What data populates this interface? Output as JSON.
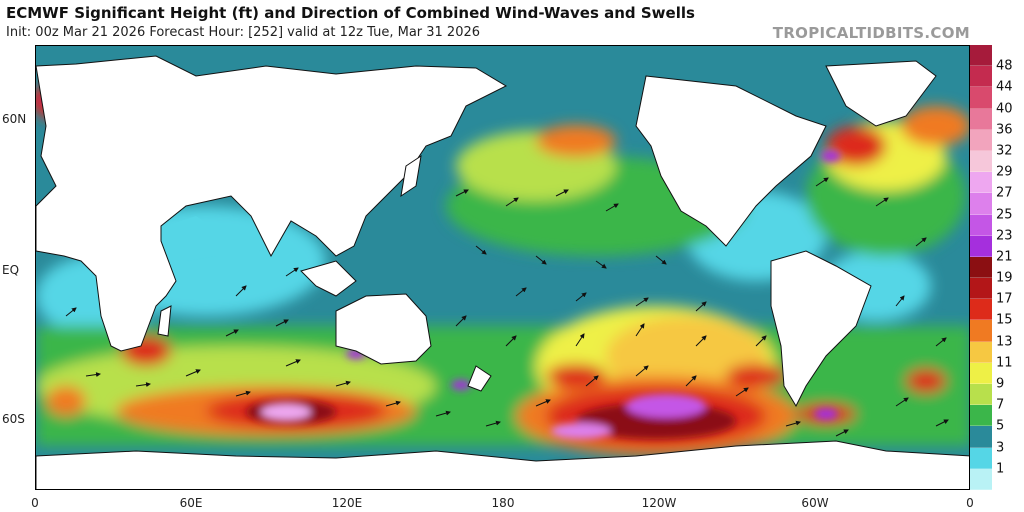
{
  "header": {
    "title": "ECMWF Significant Height (ft) and Direction of Combined Wind-Waves and Swells",
    "subtitle": "Init: 00z Mar 21 2026   Forecast Hour: [252]   valid at 12z Tue, Mar 31 2026",
    "watermark": "TROPICALTIDBITS.COM"
  },
  "axes": {
    "lat_labels": [
      "60N",
      "EQ",
      "60S"
    ],
    "lon_labels": [
      "0",
      "60E",
      "120E",
      "180",
      "120W",
      "60W",
      "0"
    ]
  },
  "colorbar": {
    "labels": [
      "48",
      "44",
      "40",
      "36",
      "32",
      "29",
      "27",
      "25",
      "23",
      "21",
      "19",
      "17",
      "15",
      "13",
      "11",
      "9",
      "7",
      "5",
      "3",
      "1"
    ],
    "colors": [
      "#a61b3b",
      "#c42b4f",
      "#d94a6d",
      "#e8789a",
      "#f2a4bd",
      "#f6c7da",
      "#eea7f0",
      "#dd80ec",
      "#c456e6",
      "#a52fdd",
      "#8b0f12",
      "#b31618",
      "#dd2b1a",
      "#f07a22",
      "#f6c842",
      "#eef046",
      "#b8e04c",
      "#3bb64a",
      "#2a8a9a",
      "#55d6e6",
      "#b9f2f5"
    ]
  }
}
